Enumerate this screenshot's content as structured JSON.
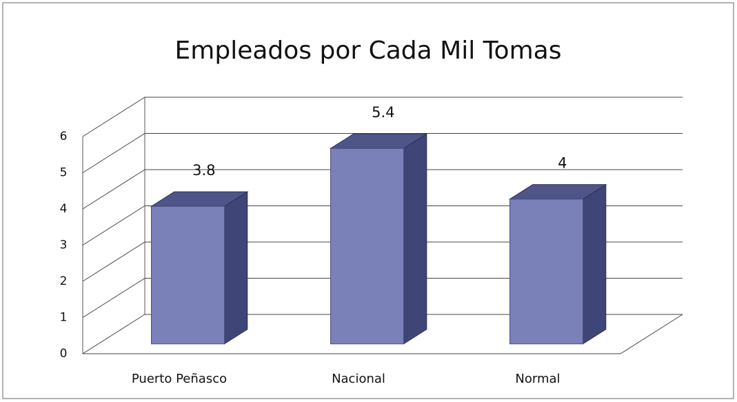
{
  "chart_data": {
    "type": "bar3d",
    "title": "Empleados por Cada Mil Tomas",
    "categories": [
      "Puerto Peñasco",
      "Nacional",
      "Normal"
    ],
    "values": [
      3.8,
      5.4,
      4
    ],
    "color": "#7a80b8",
    "ylim": [
      0,
      6
    ],
    "yticks": [
      0,
      1,
      2,
      3,
      4,
      5,
      6
    ],
    "grid": true
  }
}
